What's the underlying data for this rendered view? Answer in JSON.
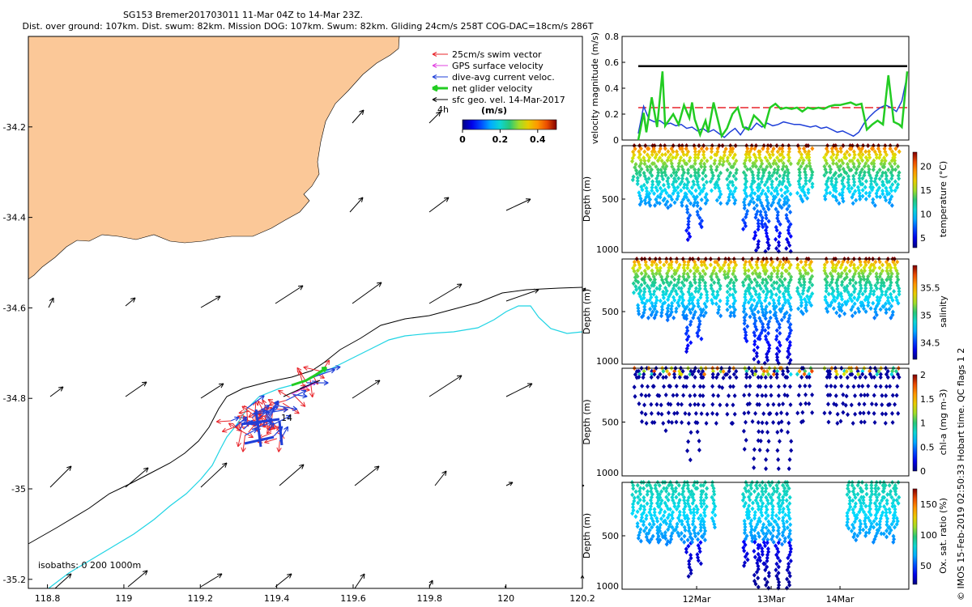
{
  "title": {
    "line1": "SG153 Bremer201703011 11-Mar 04Z to 14-Mar 23Z.",
    "line2": "Dist. over ground: 107km. Dist. swum: 82km. Mission DOG: 107km. Swum: 82km. Gliding 24cm/s 258T COG-DAC=18cm/s 286T"
  },
  "map": {
    "legend": [
      {
        "label": "25cm/s swim vector",
        "color": "#e8242a"
      },
      {
        "label": "GPS surface velocity",
        "color": "#e040e0"
      },
      {
        "label": "dive-avg current veloc.",
        "color": "#1f3fd8"
      },
      {
        "label": "net glider velocity",
        "color": "#22cc22"
      },
      {
        "label": "sfc geo. vel. 14-Mar-2017",
        "color": "#000000"
      }
    ],
    "colorbar": {
      "unit": "(m/s)",
      "ticks": [
        "0",
        "0.2",
        "0.4"
      ],
      "range": [
        0,
        0.5
      ]
    },
    "isobaths_label": "isobaths: 0   200  1000m",
    "label_4h": "4h",
    "label_14": "14",
    "land_color": "#fbc898",
    "isobath_200_color": "#000000",
    "isobath_1000_color": "#1fd4e4"
  },
  "chart_data": [
    {
      "type": "scatter",
      "title": "glider track map",
      "xlabel": "",
      "ylabel": "",
      "xlim": [
        118.75,
        120.2
      ],
      "ylim": [
        -35.22,
        -34.0
      ],
      "xticks": [
        "118.8",
        "119",
        "119.2",
        "119.4",
        "119.6",
        "119.8",
        "120",
        "120.2"
      ],
      "yticks": [
        "-34.2",
        "-34.4",
        "-34.6",
        "-34.8",
        "-35",
        "-35.2"
      ],
      "track_center": {
        "lon": 119.35,
        "lat": -34.87
      },
      "track_end": {
        "lon": 119.52,
        "lat": -34.77
      }
    },
    {
      "type": "line",
      "ylabel": "velocity magnitude (m/s)",
      "ylim": [
        0,
        0.8
      ],
      "yticks": [
        "0",
        "0.2",
        "0.4",
        "0.6",
        "0.8"
      ],
      "series": [
        {
          "name": "black",
          "color": "#000000",
          "x": [
            0,
            1
          ],
          "values": [
            0.57,
            0.57
          ]
        },
        {
          "name": "red",
          "color": "#e8242a",
          "x": [
            0,
            1
          ],
          "values": [
            0.25,
            0.25
          ]
        },
        {
          "name": "blue",
          "color": "#1f3fd8",
          "x": [
            0,
            0.02,
            0.04,
            0.06,
            0.08,
            0.1,
            0.12,
            0.14,
            0.16,
            0.18,
            0.2,
            0.22,
            0.24,
            0.26,
            0.28,
            0.3,
            0.32,
            0.34,
            0.36,
            0.38,
            0.4,
            0.42,
            0.44,
            0.46,
            0.48,
            0.5,
            0.52,
            0.54,
            0.56,
            0.58,
            0.6,
            0.62,
            0.64,
            0.66,
            0.68,
            0.7,
            0.72,
            0.74,
            0.76,
            0.78,
            0.8,
            0.82,
            0.84,
            0.86,
            0.88,
            0.9,
            0.92,
            0.94,
            0.96,
            0.98,
            1
          ],
          "values": [
            0.05,
            0.26,
            0.16,
            0.14,
            0.15,
            0.12,
            0.13,
            0.11,
            0.12,
            0.09,
            0.1,
            0.07,
            0.09,
            0.06,
            0.08,
            0.05,
            0.02,
            0.06,
            0.09,
            0.04,
            0.1,
            0.08,
            0.13,
            0.1,
            0.13,
            0.11,
            0.12,
            0.14,
            0.13,
            0.12,
            0.12,
            0.11,
            0.1,
            0.11,
            0.09,
            0.1,
            0.08,
            0.06,
            0.07,
            0.05,
            0.03,
            0.06,
            0.13,
            0.18,
            0.22,
            0.25,
            0.27,
            0.25,
            0.22,
            0.3,
            0.5
          ]
        },
        {
          "name": "green",
          "color": "#22cc22",
          "x": [
            0,
            0.02,
            0.03,
            0.05,
            0.07,
            0.09,
            0.1,
            0.11,
            0.13,
            0.15,
            0.17,
            0.19,
            0.2,
            0.21,
            0.23,
            0.25,
            0.26,
            0.28,
            0.3,
            0.31,
            0.33,
            0.35,
            0.37,
            0.39,
            0.41,
            0.43,
            0.45,
            0.47,
            0.49,
            0.51,
            0.53,
            0.55,
            0.57,
            0.59,
            0.61,
            0.63,
            0.65,
            0.67,
            0.69,
            0.71,
            0.73,
            0.75,
            0.77,
            0.79,
            0.81,
            0.83,
            0.85,
            0.87,
            0.89,
            0.91,
            0.93,
            0.95,
            0.97,
            0.98,
            1
          ],
          "values": [
            0.0,
            0.21,
            0.06,
            0.33,
            0.1,
            0.53,
            0.11,
            0.14,
            0.2,
            0.12,
            0.27,
            0.17,
            0.29,
            0.16,
            0.04,
            0.15,
            0.06,
            0.29,
            0.12,
            0.03,
            0.09,
            0.2,
            0.25,
            0.1,
            0.08,
            0.19,
            0.15,
            0.1,
            0.25,
            0.28,
            0.24,
            0.25,
            0.24,
            0.25,
            0.22,
            0.25,
            0.24,
            0.25,
            0.24,
            0.26,
            0.27,
            0.27,
            0.28,
            0.29,
            0.27,
            0.28,
            0.08,
            0.12,
            0.15,
            0.12,
            0.5,
            0.14,
            0.12,
            0.1,
            0.53
          ]
        }
      ]
    },
    {
      "type": "scatter",
      "ylabel": "Depth (m)",
      "colorbar_label": "temperature (°C)",
      "ylim": [
        0,
        1000
      ],
      "yticks": [
        "500",
        "1000"
      ],
      "cbar_ticks": [
        "5",
        "10",
        "15",
        "20"
      ],
      "cbar_range": [
        3,
        23
      ],
      "dives": [
        {
          "t": 0.01,
          "max_depth": 320
        },
        {
          "t": 0.03,
          "max_depth": 550
        },
        {
          "t": 0.05,
          "max_depth": 540
        },
        {
          "t": 0.07,
          "max_depth": 560
        },
        {
          "t": 0.09,
          "max_depth": 560
        },
        {
          "t": 0.11,
          "max_depth": 540
        },
        {
          "t": 0.13,
          "max_depth": 580
        },
        {
          "t": 0.15,
          "max_depth": 560
        },
        {
          "t": 0.17,
          "max_depth": 500
        },
        {
          "t": 0.19,
          "max_depth": 560
        },
        {
          "t": 0.21,
          "max_depth": 880
        },
        {
          "t": 0.23,
          "max_depth": 560
        },
        {
          "t": 0.25,
          "max_depth": 760
        },
        {
          "t": 0.27,
          "max_depth": 540
        },
        {
          "t": 0.3,
          "max_depth": 420
        },
        {
          "t": 0.32,
          "max_depth": 540
        },
        {
          "t": 0.34,
          "max_depth": 180
        },
        {
          "t": 0.36,
          "max_depth": 540
        },
        {
          "t": 0.38,
          "max_depth": 540
        },
        {
          "t": 0.42,
          "max_depth": 780
        },
        {
          "t": 0.44,
          "max_depth": 550
        },
        {
          "t": 0.46,
          "max_depth": 980
        },
        {
          "t": 0.48,
          "max_depth": 760
        },
        {
          "t": 0.5,
          "max_depth": 990
        },
        {
          "t": 0.52,
          "max_depth": 560
        },
        {
          "t": 0.54,
          "max_depth": 990
        },
        {
          "t": 0.56,
          "max_depth": 580
        },
        {
          "t": 0.58,
          "max_depth": 990
        },
        {
          "t": 0.62,
          "max_depth": 500
        },
        {
          "t": 0.64,
          "max_depth": 520
        },
        {
          "t": 0.66,
          "max_depth": 440
        },
        {
          "t": 0.72,
          "max_depth": 500
        },
        {
          "t": 0.74,
          "max_depth": 470
        },
        {
          "t": 0.76,
          "max_depth": 540
        },
        {
          "t": 0.78,
          "max_depth": 520
        },
        {
          "t": 0.8,
          "max_depth": 430
        },
        {
          "t": 0.82,
          "max_depth": 540
        },
        {
          "t": 0.84,
          "max_depth": 500
        },
        {
          "t": 0.86,
          "max_depth": 500
        },
        {
          "t": 0.88,
          "max_depth": 470
        },
        {
          "t": 0.9,
          "max_depth": 560
        },
        {
          "t": 0.92,
          "max_depth": 480
        },
        {
          "t": 0.94,
          "max_depth": 510
        },
        {
          "t": 0.96,
          "max_depth": 560
        },
        {
          "t": 0.98,
          "max_depth": 420
        }
      ]
    },
    {
      "type": "scatter",
      "ylabel": "Depth (m)",
      "colorbar_label": "salinity",
      "ylim": [
        0,
        1000
      ],
      "yticks": [
        "500",
        "1000"
      ],
      "cbar_ticks": [
        "34.5",
        "35",
        "35.5"
      ],
      "cbar_range": [
        34.2,
        35.9
      ]
    },
    {
      "type": "scatter",
      "ylabel": "Depth (m)",
      "colorbar_label": "chl-a (mg m-3)",
      "ylim": [
        0,
        1000
      ],
      "yticks": [
        "500",
        "1000"
      ],
      "cbar_ticks": [
        "0",
        "0.5",
        "1",
        "1.5",
        "2"
      ],
      "cbar_range": [
        0,
        2
      ]
    },
    {
      "type": "scatter",
      "ylabel": "Depth (m)",
      "colorbar_label": "Ox. sat. ratio (%)",
      "ylim": [
        0,
        1000
      ],
      "yticks": [
        "500",
        "1000"
      ],
      "cbar_ticks": [
        "50",
        "100",
        "150"
      ],
      "cbar_range": [
        20,
        175
      ],
      "xticks": [
        "12Mar",
        "13Mar",
        "14Mar"
      ],
      "xtick_fracs": [
        0.26,
        0.52,
        0.76
      ]
    }
  ],
  "footer": "© IMOS 15-Feb-2019 02:50:33 Hobart time. QC flags 1 2"
}
